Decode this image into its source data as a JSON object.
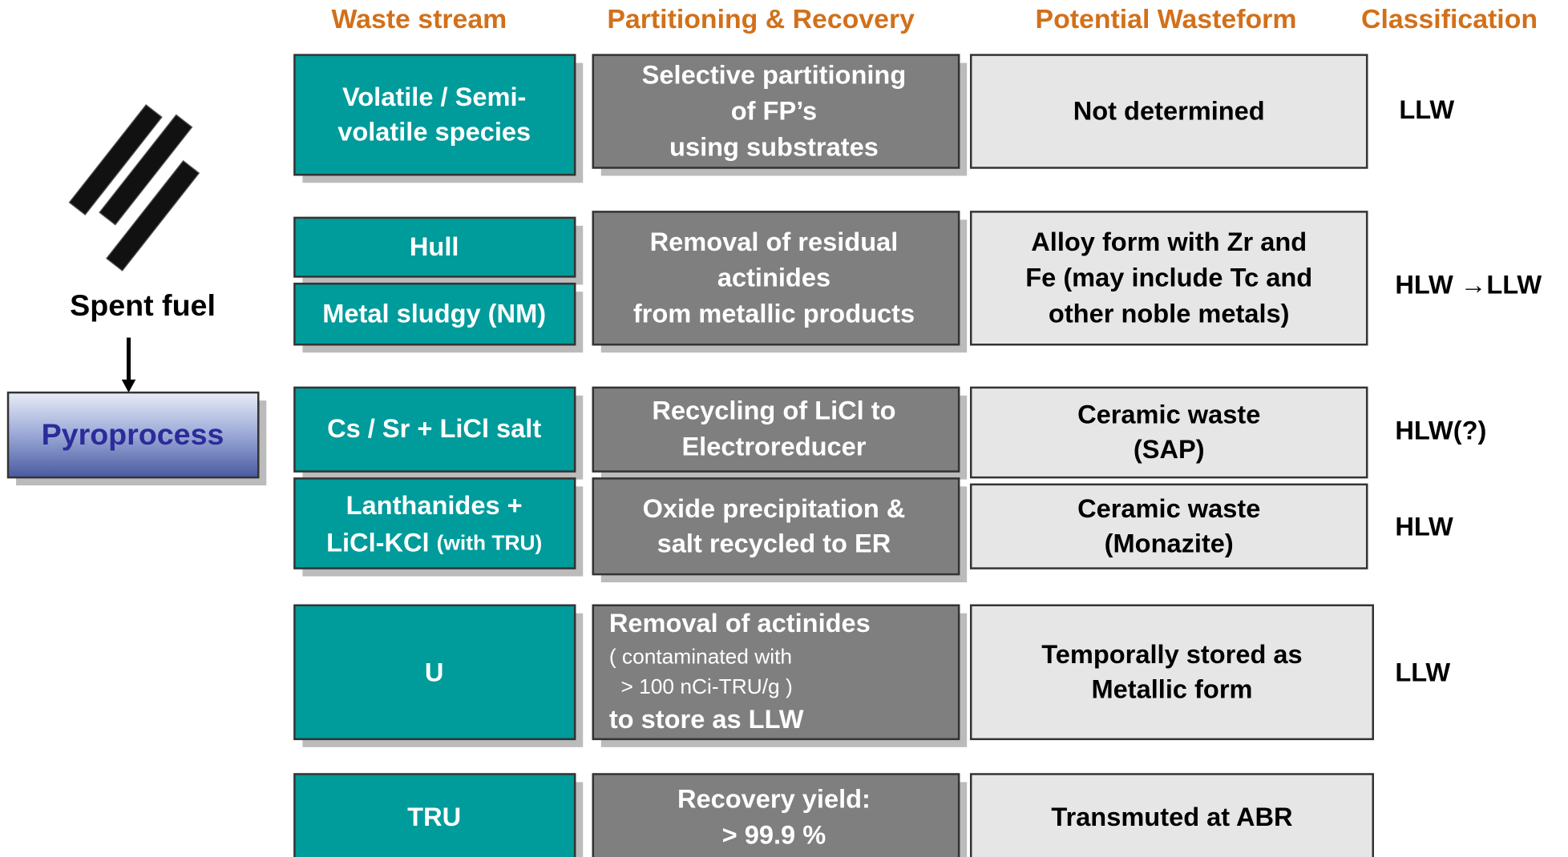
{
  "headers": [
    "Waste stream",
    "Partitioning & Recovery",
    "Potential Wasteform",
    "Classification"
  ],
  "input": {
    "label": "Spent fuel",
    "process": "Pyroprocess"
  },
  "rows": [
    {
      "waste": [
        [
          "Volatile / Semi-",
          "volatile species"
        ]
      ],
      "partitioning": [
        "Selective partitioning",
        "of FP’s",
        "using substrates"
      ],
      "wasteform": [
        "Not determined"
      ],
      "classification": "LLW"
    },
    {
      "waste": [
        [
          "Hull"
        ],
        [
          "Metal sludgy (NM)"
        ]
      ],
      "partitioning": [
        "Removal of  residual",
        "actinides",
        "from metallic products"
      ],
      "wasteform": [
        "Alloy form with Zr and",
        "Fe (may include Tc and",
        "other noble metals)"
      ],
      "classification": "HLW →LLW"
    },
    {
      "waste": [
        [
          "Cs / Sr + LiCl salt"
        ]
      ],
      "partitioning": [
        "Recycling of LiCl to",
        "Electroreducer"
      ],
      "wasteform": [
        "Ceramic waste",
        "(SAP)"
      ],
      "classification": "HLW(?)"
    },
    {
      "waste": [
        [
          "Lanthanides +",
          "LiCl-KCl ",
          "(with TRU)"
        ]
      ],
      "partitioning": [
        "Oxide precipitation &",
        "salt recycled to ER"
      ],
      "wasteform": [
        "Ceramic waste",
        "(Monazite)"
      ],
      "classification": "HLW"
    },
    {
      "waste": [
        [
          "U"
        ]
      ],
      "partitioning": [
        "Removal of actinides",
        "( contaminated with",
        "  > 100 nCi-TRU/g )",
        "to store as LLW"
      ],
      "wasteform": [
        "Temporally stored as",
        "Metallic form"
      ],
      "classification": "LLW"
    },
    {
      "waste": [
        [
          "TRU"
        ]
      ],
      "partitioning": [
        "Recovery yield:",
        "> 99.9 %"
      ],
      "wasteform": [
        "Transmuted at ABR"
      ]
    }
  ]
}
